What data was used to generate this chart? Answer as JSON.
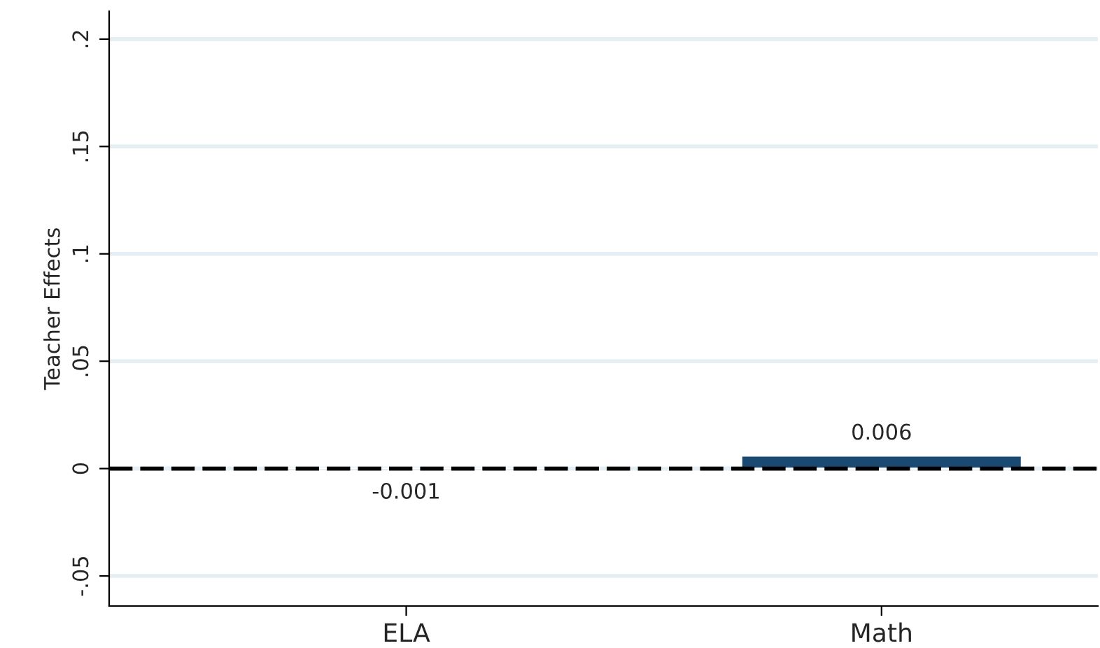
{
  "chart_data": {
    "type": "bar",
    "ylabel": "Teacher Effects",
    "categories": [
      "ELA",
      "Math"
    ],
    "series": [
      {
        "color": "#1a4a72",
        "values": [
          -0.001,
          0.006
        ]
      }
    ],
    "data_labels": true,
    "ylim": [
      -0.064,
      0.213
    ],
    "yticks": [
      {
        "value": -0.05,
        "label": "-.05"
      },
      0,
      {
        "value": 0.05,
        "label": ".05"
      },
      {
        "value": 0.1,
        "label": ".1"
      },
      {
        "value": 0.15,
        "label": ".15"
      },
      {
        "value": 0.2,
        "label": ".2"
      }
    ],
    "grid": "y",
    "ref_lines": [
      {
        "axis": "y",
        "value": 0,
        "color": "#000000",
        "line_style": "dashed"
      }
    ]
  }
}
